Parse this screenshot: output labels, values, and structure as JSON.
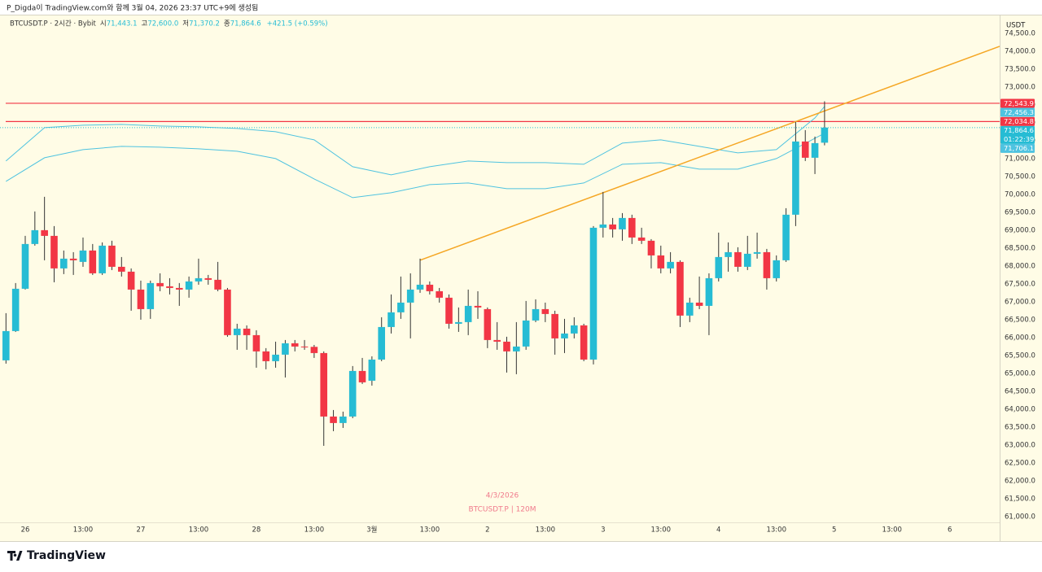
{
  "header": "P_Digda이 TradingView.com와 함께 3월 04, 2026 23:37 UTC+9에 생성됨",
  "chart_data": {
    "type": "candlestick",
    "currency": "USDT",
    "legend": {
      "symbol": "BTCUSDT.P · 2시간 · Bybit",
      "fields": [
        {
          "key": "시",
          "value": "71,443.1"
        },
        {
          "key": "고",
          "value": "72,600.0"
        },
        {
          "key": "저",
          "value": "71,370.2"
        },
        {
          "key": "종",
          "value": "71,864.6"
        }
      ],
      "change": "+421.5 (+0.59%)"
    },
    "watermark": [
      "4/3/2026",
      "BTCUSDT.P | 120M"
    ],
    "up_color": "#26bcd4",
    "down_color": "#f23645",
    "categories": [
      null,
      null,
      "26",
      null,
      null,
      null,
      null,
      null,
      "13:00",
      null,
      null,
      null,
      null,
      null,
      "27",
      null,
      null,
      null,
      null,
      null,
      "13:00",
      null,
      null,
      null,
      null,
      null,
      "28",
      null,
      null,
      null,
      null,
      null,
      "13:00",
      null,
      null,
      null,
      null,
      null,
      "3월",
      null,
      null,
      null,
      null,
      null,
      "13:00",
      null,
      null,
      null,
      null,
      null,
      "2",
      null,
      null,
      null,
      null,
      null,
      "13:00",
      null,
      null,
      null,
      null,
      null,
      "3",
      null,
      null,
      null,
      null,
      null,
      "13:00",
      null,
      null,
      null,
      null,
      null,
      "4",
      null,
      null,
      null,
      null,
      null,
      "13:00",
      null,
      null,
      null,
      null,
      null,
      "5",
      null,
      null,
      null,
      null,
      null,
      "13:00",
      null,
      null,
      null,
      null,
      null,
      "6"
    ],
    "open": [
      65364,
      66182,
      67364,
      68614,
      69000,
      68841,
      67932,
      68205,
      68114,
      68432,
      67795,
      68568,
      67977,
      67841,
      67341,
      66795,
      67523,
      67432,
      67386,
      67341,
      67568,
      67659,
      67614,
      67341,
      66068,
      66250,
      66068,
      65614,
      65341,
      65523,
      65841,
      65750,
      65741,
      65568,
      63795,
      63614,
      63795,
      65068,
      64795,
      65386,
      66295,
      66705,
      66977,
      67341,
      67477,
      67295,
      67114,
      66386,
      66432,
      66886,
      66795,
      65932,
      65886,
      65614,
      65750,
      66477,
      66795,
      66659,
      65977,
      66114,
      66341,
      65386,
      69068,
      69159,
      69023,
      69341,
      68795,
      68705,
      68295,
      67932,
      68114,
      66614,
      66977,
      66886,
      67659,
      68250,
      68386,
      67977,
      68341,
      68386,
      67659,
      68159,
      69432,
      71477,
      71023,
      71443.1,
      null,
      null,
      null,
      null,
      null,
      null,
      null,
      null,
      null,
      null,
      null,
      null,
      null
    ],
    "high": [
      66682,
      67523,
      68841,
      69523,
      69932,
      69114,
      68432,
      68386,
      68795,
      68614,
      68659,
      68705,
      68250,
      67932,
      67591,
      67591,
      67795,
      67659,
      67523,
      67705,
      68205,
      67750,
      68114,
      67386,
      66386,
      66341,
      66205,
      65705,
      65886,
      65932,
      65932,
      65932,
      65795,
      65614,
      63977,
      63932,
      65205,
      65432,
      65477,
      66568,
      67205,
      67705,
      67795,
      68205,
      67568,
      67386,
      67205,
      66841,
      67341,
      67295,
      66841,
      66432,
      66023,
      66432,
      67023,
      67068,
      66977,
      66750,
      66523,
      66568,
      66386,
      69114,
      70068,
      69341,
      69477,
      69432,
      69068,
      68750,
      68568,
      68386,
      68159,
      67114,
      67705,
      67795,
      68932,
      68659,
      68523,
      68841,
      68932,
      68477,
      68295,
      69614,
      72023,
      71795,
      71614,
      72600.0,
      null,
      null,
      null,
      null,
      null,
      null,
      null,
      null,
      null,
      null,
      null,
      null,
      null
    ],
    "low": [
      65273,
      66159,
      67341,
      68568,
      68159,
      67545,
      67773,
      67750,
      67977,
      67750,
      67750,
      67886,
      67705,
      66750,
      66500,
      66523,
      67295,
      67205,
      66886,
      67114,
      67477,
      67477,
      67295,
      66023,
      65659,
      65659,
      65159,
      65114,
      65159,
      64886,
      65614,
      65659,
      65432,
      62977,
      63386,
      63477,
      63750,
      64705,
      64659,
      65341,
      66114,
      66523,
      65977,
      67250,
      67205,
      66977,
      66250,
      66159,
      66068,
      66523,
      65705,
      65659,
      65023,
      64977,
      65659,
      66432,
      66432,
      65523,
      65568,
      65977,
      65341,
      65250,
      68795,
      68795,
      68705,
      68614,
      68614,
      67932,
      67795,
      67795,
      66295,
      66432,
      66795,
      66068,
      67568,
      67841,
      67841,
      67886,
      68205,
      67341,
      67568,
      68114,
      69114,
      70932,
      70568,
      71370.2,
      null,
      null,
      null,
      null,
      null,
      null,
      null,
      null,
      null,
      null,
      null,
      null,
      null
    ],
    "close": [
      66182,
      67364,
      68614,
      69000,
      68841,
      67932,
      68205,
      68159,
      68432,
      67795,
      68568,
      67977,
      67841,
      67341,
      66795,
      67523,
      67432,
      67386,
      67341,
      67568,
      67659,
      67614,
      67341,
      66068,
      66250,
      66068,
      65614,
      65341,
      65523,
      65841,
      65750,
      65741,
      65568,
      63795,
      63614,
      63795,
      65068,
      64750,
      65386,
      66295,
      66705,
      66977,
      67341,
      67477,
      67295,
      67114,
      66386,
      66432,
      66886,
      66841,
      65932,
      65886,
      65614,
      65750,
      66477,
      66795,
      66659,
      65977,
      66114,
      66341,
      65386,
      69068,
      69159,
      69023,
      69341,
      68795,
      68705,
      68295,
      67932,
      68114,
      66614,
      66977,
      66886,
      67659,
      68250,
      68386,
      67977,
      68341,
      68386,
      67659,
      68159,
      69432,
      71477,
      71023,
      71432,
      71864.6,
      null,
      null,
      null,
      null,
      null,
      null,
      null,
      null,
      null,
      null,
      null,
      null,
      null
    ],
    "series": [
      {
        "color": "#4fc3e0",
        "x": [
          0,
          4,
          8,
          12,
          16,
          20,
          24,
          28,
          32,
          36,
          40,
          44,
          48,
          52,
          56,
          60,
          64,
          68,
          72,
          76,
          80,
          84,
          85
        ],
        "values": [
          70932,
          71864,
          71932,
          71955,
          71909,
          71886,
          71841,
          71750,
          71523,
          70773,
          70545,
          70773,
          70932,
          70886,
          70886,
          70841,
          71432,
          71523,
          71341,
          71159,
          71250,
          72136,
          72456.3
        ],
        "last_label": {
          "value": 72456.3,
          "label": "72,456.3"
        }
      },
      {
        "color": "#4fc3e0",
        "x": [
          0,
          4,
          8,
          12,
          16,
          20,
          24,
          28,
          32,
          36,
          40,
          44,
          48,
          52,
          56,
          60,
          64,
          68,
          72,
          76,
          80,
          84,
          85
        ],
        "values": [
          70364,
          71023,
          71250,
          71341,
          71318,
          71273,
          71205,
          71000,
          70432,
          69909,
          70045,
          70273,
          70318,
          70159,
          70159,
          70318,
          70841,
          70886,
          70705,
          70705,
          71000,
          71568,
          71706.1
        ],
        "last_label": {
          "value": 71706.1,
          "label": "71,706.1"
        }
      }
    ],
    "trendline": {
      "color": "#f5a623",
      "x": [
        43,
        85
      ],
      "values": [
        68160,
        72330
      ]
    },
    "hlines": [
      {
        "value": 72543.9,
        "label": "72,543.9",
        "color": "#f23645"
      },
      {
        "value": 72034.8,
        "label": "72,034.8",
        "color": "#f23645"
      }
    ],
    "last_price": {
      "value": 71864.6,
      "label": "71,864.6",
      "countdown": "01:22:39"
    },
    "grid": false,
    "ylim": [
      60430,
      75020
    ],
    "yticks": [
      {
        "value": 61000,
        "label": "61,000.0"
      },
      {
        "value": 61500,
        "label": "61,500.0"
      },
      {
        "value": 62000,
        "label": "62,000.0"
      },
      {
        "value": 62500,
        "label": "62,500.0"
      },
      {
        "value": 63000,
        "label": "63,000.0"
      },
      {
        "value": 63500,
        "label": "63,500.0"
      },
      {
        "value": 64000,
        "label": "64,000.0"
      },
      {
        "value": 64500,
        "label": "64,500.0"
      },
      {
        "value": 65000,
        "label": "65,000.0"
      },
      {
        "value": 65500,
        "label": "65,500.0"
      },
      {
        "value": 66000,
        "label": "66,000.0"
      },
      {
        "value": 66500,
        "label": "66,500.0"
      },
      {
        "value": 67000,
        "label": "67,000.0"
      },
      {
        "value": 67500,
        "label": "67,500.0"
      },
      {
        "value": 68000,
        "label": "68,000.0"
      },
      {
        "value": 68500,
        "label": "68,500.0"
      },
      {
        "value": 69000,
        "label": "69,000.0"
      },
      {
        "value": 69500,
        "label": "69,500.0"
      },
      {
        "value": 70000,
        "label": "70,000.0"
      },
      {
        "value": 70500,
        "label": "70,500.0"
      },
      {
        "value": 71000,
        "label": "71,000.0"
      },
      {
        "value": 71500,
        "label": "71,500.0"
      },
      {
        "value": 72000,
        "label": "72,000.0"
      },
      {
        "value": 72500,
        "label": "72,500.0"
      },
      {
        "value": 73000,
        "label": "73,000.0"
      },
      {
        "value": 73500,
        "label": "73,500.0"
      },
      {
        "value": 74000,
        "label": "74,000.0"
      },
      {
        "value": 74500,
        "label": "74,500.0"
      }
    ]
  },
  "footer": {
    "brand": "TradingView"
  }
}
